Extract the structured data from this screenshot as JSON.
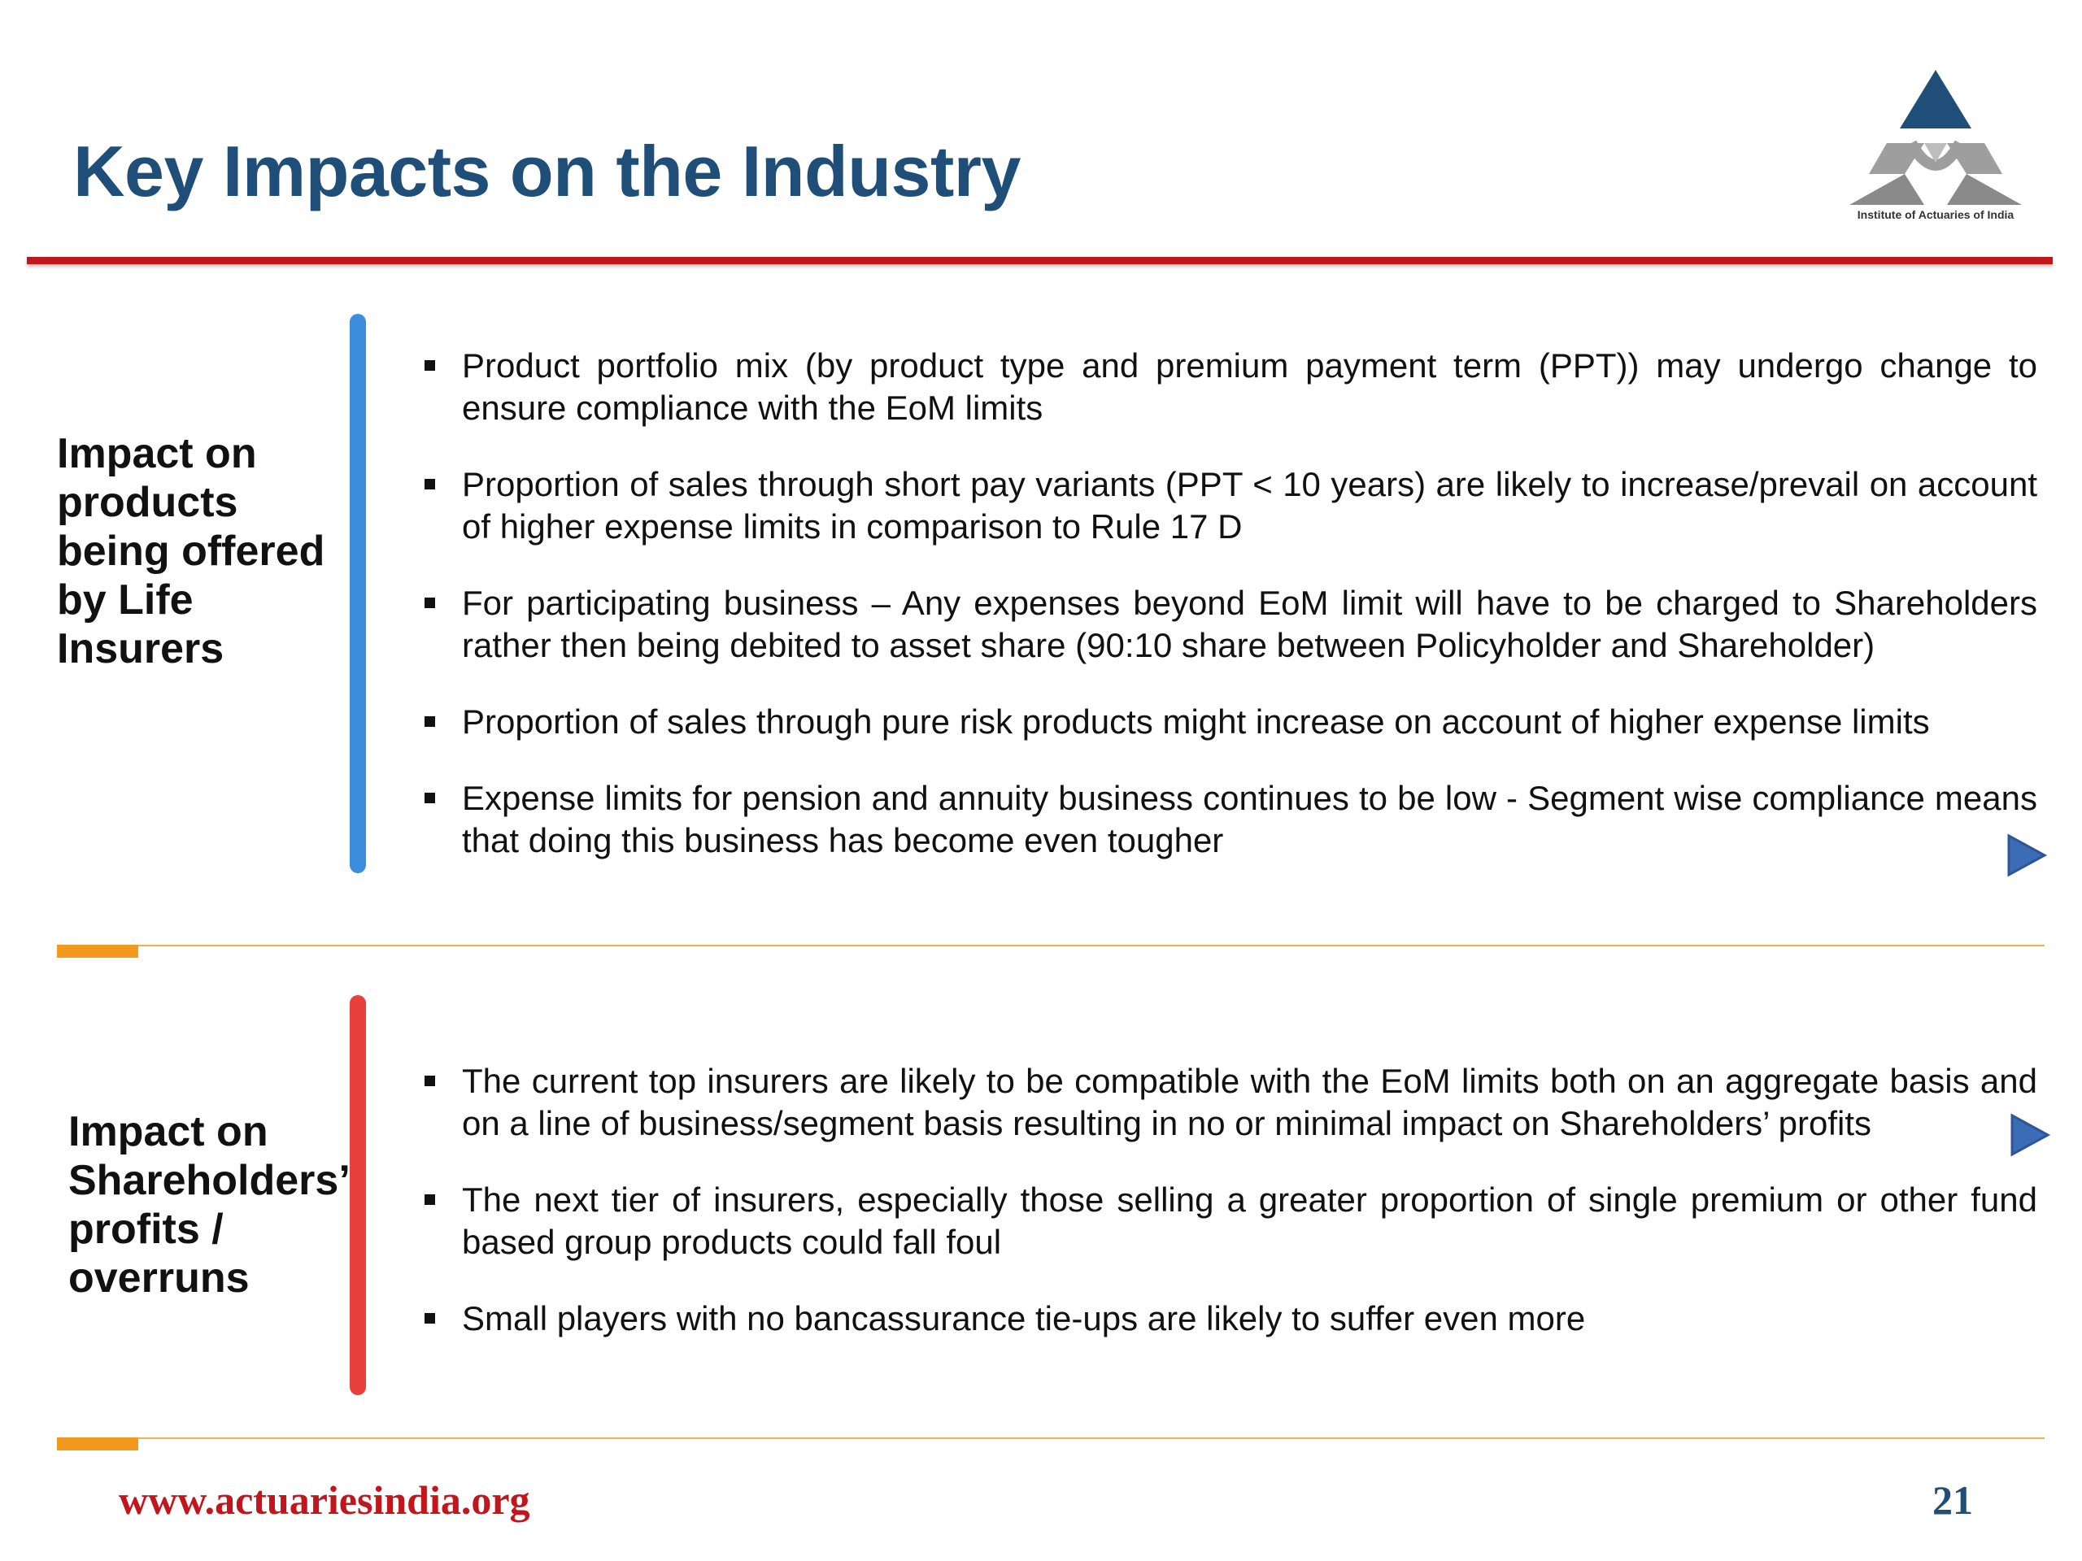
{
  "slide": {
    "title": "Key Impacts on the Industry",
    "logo_caption": "Institute of Actuaries of India",
    "title_rule_color": "#C0161C"
  },
  "sections": [
    {
      "label": "Impact on products being offered by Life Insurers",
      "bar_color": "#3B8EDC",
      "bullets": [
        "Product portfolio mix (by product type and premium payment term (PPT)) may undergo change to ensure compliance with the EoM limits",
        "Proportion of sales through short pay variants (PPT < 10 years) are likely to increase/prevail on account of higher expense limits in comparison to Rule 17 D",
        "For participating business – Any expenses beyond EoM limit will have to be charged to Shareholders rather then being debited to asset share (90:10 share between Policyholder and Shareholder)",
        "Proportion of sales through pure risk products  might increase on account of higher expense limits",
        "Expense limits for pension and annuity business continues to be low - Segment wise compliance means that doing this business has become even tougher"
      ]
    },
    {
      "label": "Impact on Shareholders’ profits / overruns",
      "bar_color": "#E8403F",
      "bullets": [
        "The current top insurers are likely to be compatible with the EoM limits both on an aggregate basis and on a line of business/segment basis resulting in no or minimal impact on Shareholders’ profits",
        "The next tier of insurers, especially those selling a greater proportion of single premium or other fund based group products could fall foul",
        "Small players with no bancassurance tie-ups are likely to suffer even more"
      ]
    }
  ],
  "footer": {
    "url": "www.actuariesindia.org",
    "page_number": "21"
  },
  "icons": {
    "logo": "institute-logo-icon",
    "nav_arrow": "play-arrow-icon",
    "nav_arrow_color": "#3A6DB5"
  }
}
